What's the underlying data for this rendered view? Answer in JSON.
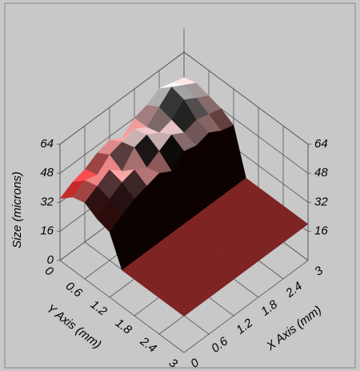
{
  "chart_data": {
    "type": "surface",
    "xlabel": "X Axis (mm)",
    "ylabel": "Y Axis (mm)",
    "zlabel": "Size (microns)",
    "x": [
      0,
      0.3,
      0.6,
      0.9,
      1.2,
      1.5,
      1.8,
      2.1,
      2.4,
      2.7,
      3
    ],
    "y": [
      0,
      0.3,
      0.6,
      0.9,
      1.2,
      1.5,
      1.8,
      2.1,
      2.4,
      2.7,
      3
    ],
    "z": [
      [
        34,
        38,
        40,
        44,
        46,
        42,
        48,
        50,
        54,
        52,
        50
      ],
      [
        40,
        44,
        42,
        48,
        50,
        52,
        48,
        54,
        60,
        56,
        52
      ],
      [
        42,
        46,
        50,
        44,
        52,
        54,
        50,
        52,
        58,
        54,
        50
      ],
      [
        38,
        44,
        48,
        50,
        46,
        50,
        54,
        50,
        52,
        50,
        48
      ],
      [
        36,
        40,
        44,
        46,
        48,
        44,
        50,
        48,
        50,
        46,
        44
      ],
      [
        20,
        20,
        20,
        20,
        20,
        20,
        20,
        20,
        20,
        20,
        20
      ],
      [
        20,
        20,
        20,
        20,
        20,
        20,
        20,
        20,
        20,
        20,
        20
      ],
      [
        20,
        20,
        20,
        20,
        20,
        20,
        20,
        20,
        20,
        20,
        20
      ],
      [
        20,
        20,
        20,
        20,
        20,
        20,
        20,
        20,
        20,
        20,
        20
      ],
      [
        20,
        20,
        20,
        20,
        20,
        20,
        20,
        20,
        20,
        20,
        20
      ],
      [
        20,
        20,
        20,
        20,
        20,
        20,
        20,
        20,
        20,
        20,
        20
      ]
    ],
    "xlim": [
      0,
      3
    ],
    "ylim": [
      0,
      3
    ],
    "zlim": [
      0,
      64
    ],
    "xticks": [
      0,
      0.6,
      1.2,
      1.8,
      2.4,
      3
    ],
    "yticks": [
      0,
      0.6,
      1.2,
      1.8,
      2.4,
      3
    ],
    "zticks": [
      0,
      16,
      32,
      48,
      64
    ],
    "colormap": [
      "#9e2f2f",
      "#ff1a1a",
      "#ffffff"
    ],
    "grid": true
  }
}
